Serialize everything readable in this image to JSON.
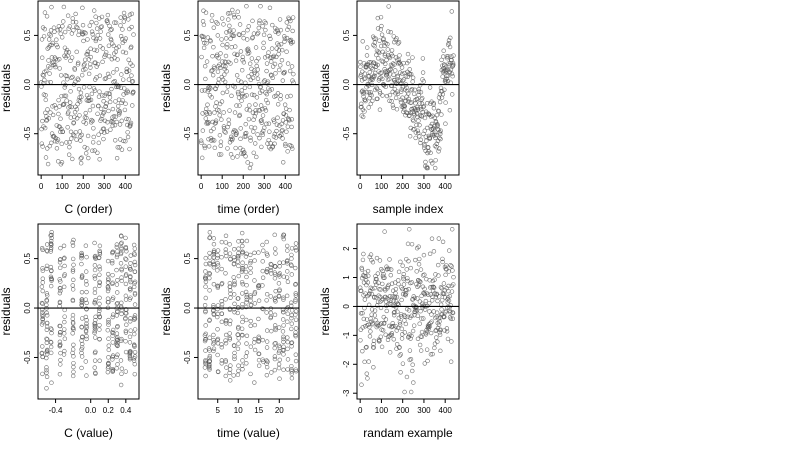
{
  "chart_data": [
    {
      "type": "scatter",
      "xlabel": "C (order)",
      "ylabel": "residuals",
      "xticks": [
        0,
        100,
        200,
        300,
        400
      ],
      "xtick_labels": [
        "0",
        "100",
        "200",
        "300",
        "400"
      ],
      "yticks": [
        -0.5,
        0.0,
        0.5
      ],
      "ytick_labels": [
        "-0.5",
        "0.0",
        "0.5"
      ],
      "xlim": [
        -15,
        465
      ],
      "ylim": [
        -0.92,
        0.85
      ],
      "reference_line_y": 0,
      "n_points": 440,
      "point_style": "open-circle",
      "grid": false,
      "pattern": "uniform"
    },
    {
      "type": "scatter",
      "xlabel": "time (order)",
      "ylabel": "residuals",
      "xticks": [
        0,
        100,
        200,
        300,
        400
      ],
      "xtick_labels": [
        "0",
        "100",
        "200",
        "300",
        "400"
      ],
      "yticks": [
        -0.5,
        0.0,
        0.5
      ],
      "ytick_labels": [
        "-0.5",
        "0.0",
        "0.5"
      ],
      "xlim": [
        -15,
        465
      ],
      "ylim": [
        -0.92,
        0.85
      ],
      "reference_line_y": 0,
      "n_points": 440,
      "point_style": "open-circle",
      "grid": false,
      "pattern": "uniform"
    },
    {
      "type": "scatter",
      "xlabel": "sample index",
      "ylabel": "residuals",
      "xticks": [
        0,
        100,
        200,
        300,
        400
      ],
      "xtick_labels": [
        "0",
        "100",
        "200",
        "300",
        "400"
      ],
      "yticks": [
        -0.5,
        0.0,
        0.5
      ],
      "ytick_labels": [
        "-0.5",
        "0.0",
        "0.5"
      ],
      "xlim": [
        -15,
        465
      ],
      "ylim": [
        -0.92,
        0.85
      ],
      "reference_line_y": 0,
      "n_points": 440,
      "point_style": "open-circle",
      "grid": false,
      "pattern": "wave"
    },
    {
      "type": "scatter",
      "xlabel": "C (value)",
      "ylabel": "residuals",
      "xticks": [
        -0.4,
        0.0,
        0.2,
        0.4
      ],
      "xtick_labels": [
        "-0.4",
        "0.0",
        "0.2",
        "0.4"
      ],
      "yticks": [
        -0.5,
        0.0,
        0.5
      ],
      "ytick_labels": [
        "-0.5",
        "0.0",
        "0.5"
      ],
      "xlim": [
        -0.6,
        0.55
      ],
      "ylim": [
        -0.92,
        0.85
      ],
      "reference_line_y": 0,
      "n_points": 440,
      "point_style": "open-circle",
      "grid": false,
      "pattern": "clustered",
      "x_clusters": [
        -0.55,
        -0.5,
        -0.45,
        -0.35,
        -0.3,
        -0.2,
        -0.1,
        -0.05,
        0.05,
        0.1,
        0.2,
        0.25,
        0.3,
        0.35,
        0.4,
        0.45,
        0.5
      ]
    },
    {
      "type": "scatter",
      "xlabel": "time (value)",
      "ylabel": "residuals",
      "xticks": [
        5,
        10,
        15,
        20
      ],
      "xtick_labels": [
        "5",
        "10",
        "15",
        "20"
      ],
      "yticks": [
        -0.5,
        0.0,
        0.5
      ],
      "ytick_labels": [
        "-0.5",
        "0.0",
        "0.5"
      ],
      "xlim": [
        0.2,
        24.8
      ],
      "ylim": [
        -0.92,
        0.85
      ],
      "reference_line_y": 0,
      "n_points": 440,
      "point_style": "open-circle",
      "grid": false,
      "pattern": "integer",
      "x_clusters": [
        2,
        3,
        4,
        5,
        6,
        7,
        8,
        9,
        10,
        11,
        12,
        13,
        14,
        15,
        16,
        17,
        18,
        19,
        20,
        21,
        22,
        23,
        24
      ]
    },
    {
      "type": "scatter",
      "xlabel": "randam example",
      "ylabel": "residuals",
      "xticks": [
        0,
        100,
        200,
        300,
        400
      ],
      "xtick_labels": [
        "0",
        "100",
        "200",
        "300",
        "400"
      ],
      "yticks": [
        -3,
        -2,
        -1,
        0,
        1,
        2
      ],
      "ytick_labels": [
        "-3",
        "-2",
        "-1",
        "0",
        "1",
        "2"
      ],
      "xlim": [
        -15,
        465
      ],
      "ylim": [
        -3.2,
        2.85
      ],
      "reference_line_y": 0,
      "n_points": 440,
      "point_style": "open-circle",
      "grid": false,
      "pattern": "normal"
    }
  ],
  "style": {
    "point_color": "#555555",
    "axis_color": "#000000",
    "background": "#ffffff"
  }
}
